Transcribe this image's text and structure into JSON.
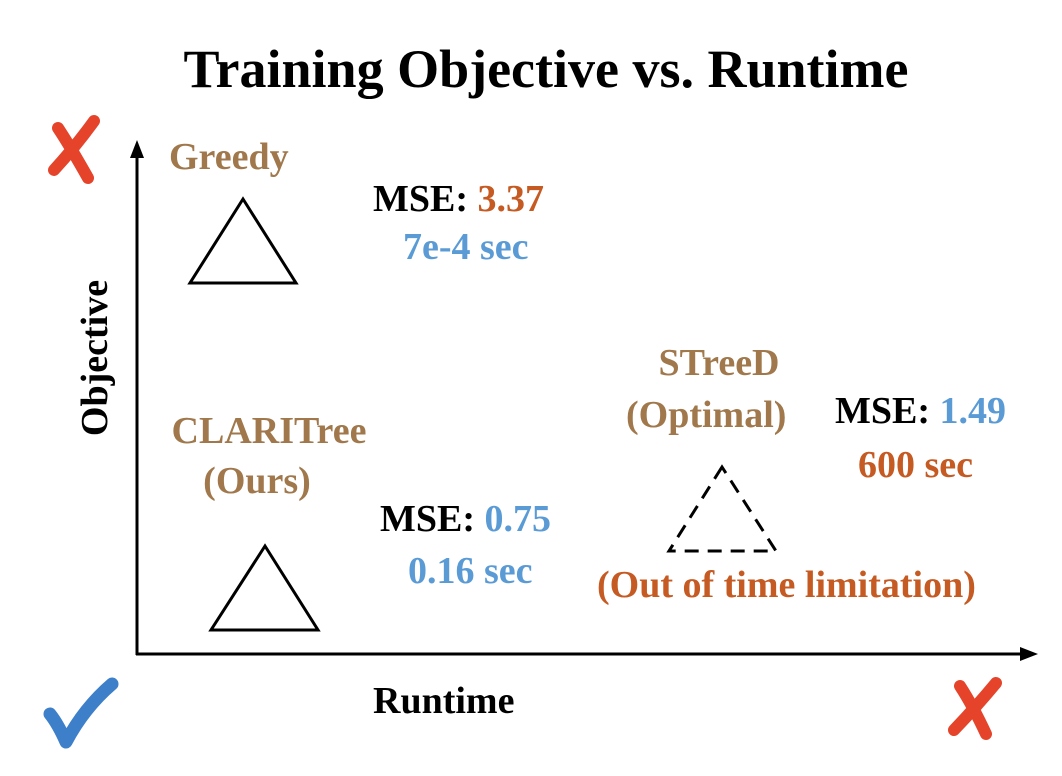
{
  "title": "Training Objective vs. Runtime",
  "axes": {
    "x_label": "Runtime",
    "y_label": "Objective"
  },
  "methods": {
    "greedy": {
      "name": "Greedy",
      "mse_label": "MSE:",
      "mse_value": "3.37",
      "runtime": "7e-4 sec"
    },
    "claritree": {
      "name": "CLARITree",
      "tag": "(Ours)",
      "mse_label": "MSE:",
      "mse_value": "0.75",
      "runtime": "0.16 sec"
    },
    "streed": {
      "name": "STreeD",
      "tag": "(Optimal)",
      "mse_label": "MSE:",
      "mse_value": "1.49",
      "runtime": "600 sec",
      "note": "(Out of time limitation)"
    }
  },
  "colors": {
    "method_name": "#a0784c",
    "bad_value": "#c55a22",
    "good_value": "#5b9bd5",
    "cross_mark": "#e5432a",
    "check_mark": "#3d7fc9"
  },
  "icons": {
    "top_left": "red-cross-icon",
    "bottom_left": "blue-check-icon",
    "bottom_right": "red-cross-icon"
  }
}
